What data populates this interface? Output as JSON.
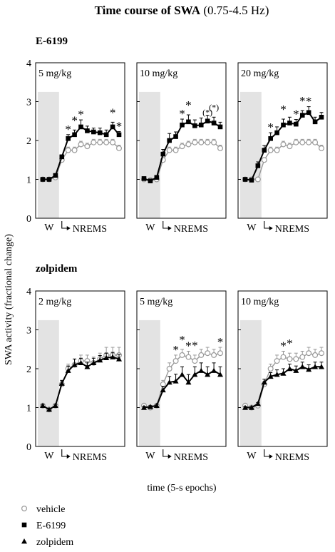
{
  "figure": {
    "title_bold": "Time course of SWA",
    "title_rest": " (0.75-4.5 Hz)",
    "ylabel": "SWA activity (fractional change)",
    "xlabel": "time (5-s epochs)",
    "x_tick_w": "W",
    "x_tick_nrems": "NREMS",
    "y_ticks": [
      "0",
      "1",
      "2",
      "3",
      "4"
    ],
    "groups": [
      "E-6199",
      "zolpidem"
    ]
  },
  "legend": {
    "items": [
      {
        "label": "vehicle",
        "marker": "open-circle",
        "color": "#999999"
      },
      {
        "label": "E-6199",
        "marker": "filled-square",
        "color": "#000000"
      },
      {
        "label": "zolpidem",
        "marker": "filled-triangle",
        "color": "#000000"
      }
    ]
  },
  "chart_data": [
    {
      "type": "line",
      "group": "E-6199",
      "panel_label": "5 mg/kg",
      "ylim": [
        0,
        4
      ],
      "x": [
        1,
        2,
        3,
        4,
        5,
        6,
        7,
        8,
        9,
        10,
        11,
        12,
        13
      ],
      "series": [
        {
          "name": "vehicle",
          "marker": "open-circle",
          "color": "#999999",
          "values": [
            1.0,
            1.0,
            1.05,
            1.5,
            1.75,
            1.75,
            1.9,
            1.85,
            1.95,
            1.95,
            1.95,
            1.95,
            1.8
          ],
          "errors": [
            0.03,
            0.03,
            0.03,
            0.05,
            0.08,
            0.08,
            0.08,
            0.08,
            0.08,
            0.08,
            0.08,
            0.08,
            0.08
          ]
        },
        {
          "name": "E-6199",
          "marker": "filled-square",
          "color": "#000000",
          "values": [
            1.0,
            1.0,
            1.1,
            1.58,
            2.05,
            2.15,
            2.35,
            2.25,
            2.22,
            2.2,
            2.15,
            2.35,
            2.15
          ],
          "errors": [
            0.03,
            0.03,
            0.03,
            0.05,
            0.1,
            0.12,
            0.18,
            0.12,
            0.1,
            0.12,
            0.12,
            0.12,
            0.08
          ]
        }
      ],
      "significance": [
        {
          "x": 5,
          "label": "*"
        },
        {
          "x": 6,
          "label": "*"
        },
        {
          "x": 7,
          "label": "*"
        },
        {
          "x": 12,
          "label": "*"
        },
        {
          "x": 13,
          "label": "*"
        }
      ]
    },
    {
      "type": "line",
      "group": "E-6199",
      "panel_label": "10 mg/kg",
      "ylim": [
        0,
        4
      ],
      "x": [
        1,
        2,
        3,
        4,
        5,
        6,
        7,
        8,
        9,
        10,
        11,
        12,
        13
      ],
      "series": [
        {
          "name": "vehicle",
          "marker": "open-circle",
          "color": "#999999",
          "values": [
            1.0,
            0.98,
            1.0,
            1.5,
            1.75,
            1.75,
            1.85,
            1.9,
            1.95,
            1.95,
            1.95,
            1.95,
            1.8
          ],
          "errors": [
            0.03,
            0.03,
            0.03,
            0.05,
            0.08,
            0.08,
            0.08,
            0.08,
            0.08,
            0.08,
            0.08,
            0.08,
            0.08
          ]
        },
        {
          "name": "E-6199",
          "marker": "filled-square",
          "color": "#000000",
          "values": [
            1.02,
            0.96,
            1.05,
            1.65,
            2.0,
            2.1,
            2.4,
            2.48,
            2.38,
            2.4,
            2.5,
            2.45,
            2.35
          ],
          "errors": [
            0.03,
            0.03,
            0.05,
            0.12,
            0.18,
            0.12,
            0.15,
            0.18,
            0.15,
            0.18,
            0.15,
            0.15,
            0.12
          ]
        }
      ],
      "significance": [
        {
          "x": 7,
          "label": "*"
        },
        {
          "x": 8,
          "label": "*"
        },
        {
          "x": 11,
          "label": "(*)"
        },
        {
          "x": 12,
          "label": "(*)"
        }
      ]
    },
    {
      "type": "line",
      "group": "E-6199",
      "panel_label": "20 mg/kg",
      "ylim": [
        0,
        4
      ],
      "x": [
        1,
        2,
        3,
        4,
        5,
        6,
        7,
        8,
        9,
        10,
        11,
        12,
        13
      ],
      "series": [
        {
          "name": "vehicle",
          "marker": "open-circle",
          "color": "#999999",
          "values": [
            1.0,
            1.0,
            1.0,
            1.5,
            1.75,
            1.75,
            1.9,
            1.85,
            1.95,
            1.95,
            1.95,
            1.95,
            1.8
          ],
          "errors": [
            0.03,
            0.03,
            0.03,
            0.05,
            0.08,
            0.08,
            0.08,
            0.08,
            0.08,
            0.08,
            0.08,
            0.08,
            0.08
          ]
        },
        {
          "name": "E-6199",
          "marker": "filled-square",
          "color": "#000000",
          "values": [
            1.0,
            0.98,
            1.35,
            1.75,
            2.05,
            2.2,
            2.4,
            2.45,
            2.42,
            2.65,
            2.72,
            2.48,
            2.6
          ],
          "errors": [
            0.03,
            0.03,
            0.1,
            0.12,
            0.15,
            0.15,
            0.15,
            0.15,
            0.12,
            0.12,
            0.15,
            0.12,
            0.12
          ]
        }
      ],
      "significance": [
        {
          "x": 5,
          "label": "*"
        },
        {
          "x": 7,
          "label": "*"
        },
        {
          "x": 9,
          "label": "*"
        },
        {
          "x": 10,
          "label": "*"
        },
        {
          "x": 11,
          "label": "*"
        }
      ]
    },
    {
      "type": "line",
      "group": "zolpidem",
      "panel_label": "2 mg/kg",
      "ylim": [
        0,
        4
      ],
      "x": [
        1,
        2,
        3,
        4,
        5,
        6,
        7,
        8,
        9,
        10,
        11,
        12,
        13
      ],
      "series": [
        {
          "name": "vehicle",
          "marker": "open-circle",
          "color": "#999999",
          "values": [
            1.05,
            0.95,
            1.05,
            1.6,
            2.0,
            2.1,
            2.2,
            2.2,
            2.15,
            2.25,
            2.35,
            2.35,
            2.35
          ],
          "errors": [
            0.03,
            0.03,
            0.03,
            0.08,
            0.12,
            0.15,
            0.15,
            0.15,
            0.15,
            0.15,
            0.2,
            0.2,
            0.2
          ]
        },
        {
          "name": "zolpidem",
          "marker": "filled-triangle",
          "color": "#000000",
          "values": [
            1.05,
            0.95,
            1.05,
            1.62,
            1.95,
            2.1,
            2.15,
            2.05,
            2.15,
            2.22,
            2.28,
            2.3,
            2.25
          ],
          "errors": [
            0.03,
            0.03,
            0.03,
            0.08,
            0.12,
            0.15,
            0.12,
            0.12,
            0.12,
            0.12,
            0.12,
            0.12,
            0.12
          ]
        }
      ],
      "significance": []
    },
    {
      "type": "line",
      "group": "zolpidem",
      "panel_label": "5 mg/kg",
      "ylim": [
        0,
        4
      ],
      "x": [
        1,
        2,
        3,
        4,
        5,
        6,
        7,
        8,
        9,
        10,
        11,
        12,
        13
      ],
      "series": [
        {
          "name": "vehicle",
          "marker": "open-circle",
          "color": "#999999",
          "values": [
            1.05,
            1.0,
            1.05,
            1.6,
            2.0,
            2.2,
            2.35,
            2.3,
            2.2,
            2.35,
            2.4,
            2.35,
            2.4
          ],
          "errors": [
            0.03,
            0.03,
            0.03,
            0.1,
            0.15,
            0.15,
            0.15,
            0.15,
            0.15,
            0.15,
            0.15,
            0.15,
            0.15
          ]
        },
        {
          "name": "zolpidem",
          "marker": "filled-triangle",
          "color": "#000000",
          "values": [
            1.0,
            1.02,
            1.05,
            1.45,
            1.65,
            1.68,
            1.85,
            1.65,
            1.85,
            1.95,
            1.85,
            1.95,
            1.85
          ],
          "errors": [
            0.03,
            0.03,
            0.03,
            0.1,
            0.15,
            0.18,
            0.2,
            0.2,
            0.2,
            0.2,
            0.2,
            0.2,
            0.2
          ]
        }
      ],
      "significance": [
        {
          "x": 6,
          "label": "*"
        },
        {
          "x": 7,
          "label": "*"
        },
        {
          "x": 8,
          "label": "*"
        },
        {
          "x": 9,
          "label": "*"
        },
        {
          "x": 13,
          "label": "*"
        }
      ]
    },
    {
      "type": "line",
      "group": "zolpidem",
      "panel_label": "10 mg/kg",
      "ylim": [
        0,
        4
      ],
      "x": [
        1,
        2,
        3,
        4,
        5,
        6,
        7,
        8,
        9,
        10,
        11,
        12,
        13
      ],
      "series": [
        {
          "name": "vehicle",
          "marker": "open-circle",
          "color": "#999999",
          "values": [
            1.05,
            1.0,
            1.05,
            1.6,
            2.0,
            2.2,
            2.3,
            2.25,
            2.25,
            2.3,
            2.4,
            2.35,
            2.4
          ],
          "errors": [
            0.03,
            0.03,
            0.03,
            0.08,
            0.12,
            0.15,
            0.15,
            0.15,
            0.15,
            0.15,
            0.15,
            0.15,
            0.15
          ]
        },
        {
          "name": "zolpidem",
          "marker": "filled-triangle",
          "color": "#000000",
          "values": [
            1.0,
            1.0,
            1.1,
            1.65,
            1.8,
            1.85,
            1.88,
            2.0,
            1.95,
            2.05,
            1.98,
            2.05,
            2.05
          ],
          "errors": [
            0.03,
            0.03,
            0.03,
            0.08,
            0.1,
            0.12,
            0.12,
            0.12,
            0.12,
            0.12,
            0.12,
            0.12,
            0.12
          ]
        }
      ],
      "significance": [
        {
          "x": 7,
          "label": "*"
        },
        {
          "x": 8,
          "label": "*"
        }
      ]
    }
  ]
}
